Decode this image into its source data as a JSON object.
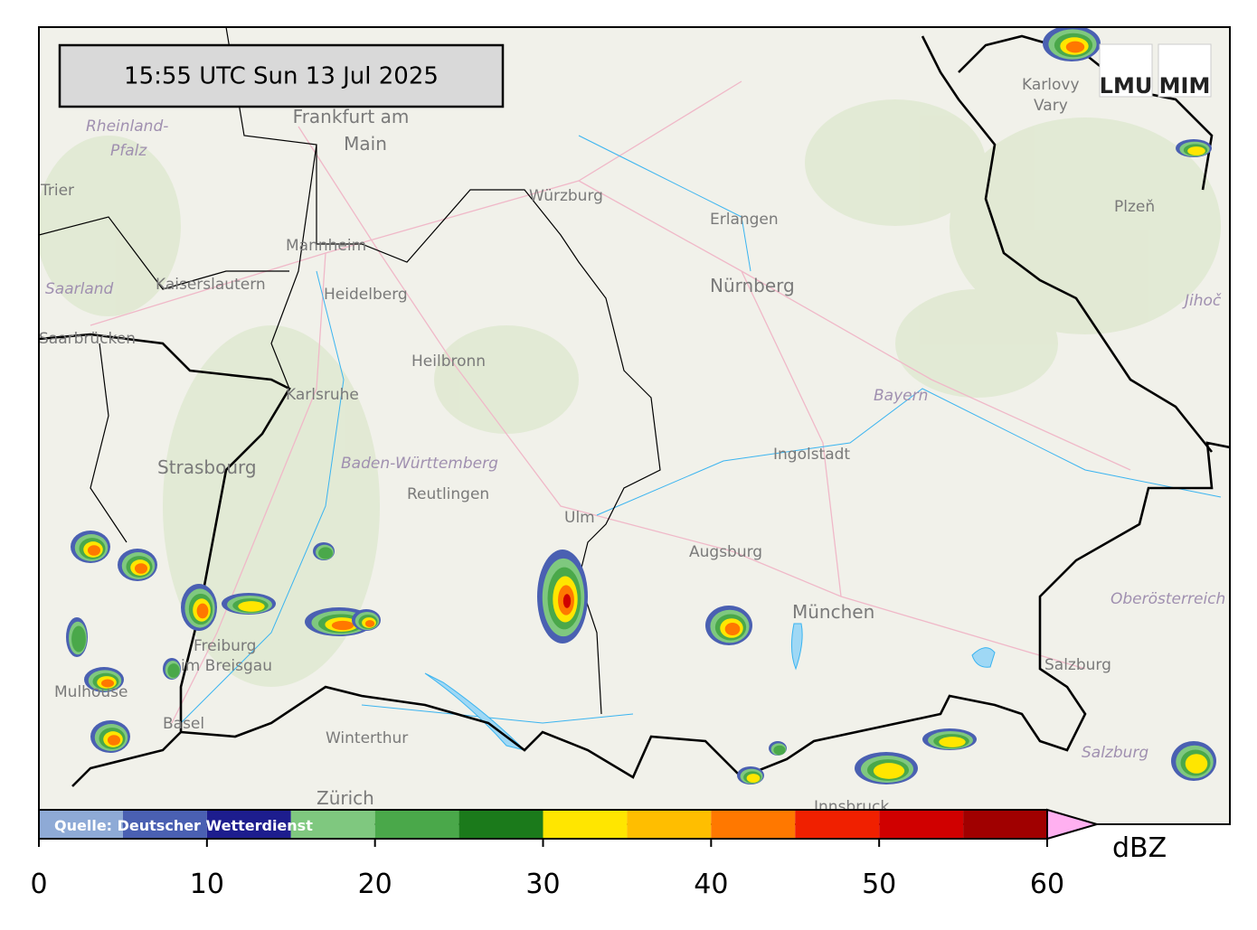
{
  "timestamp": "15:55 UTC  Sun 13 Jul 2025",
  "logos": [
    "LMU",
    "MIM"
  ],
  "source": "Quelle: Deutscher Wetterdienst",
  "map_labels": [
    "Frankfurt am",
    "Main",
    "Rheinland-",
    "Pfalz",
    "Trier",
    "Würzburg",
    "Erlangen",
    "Nürnberg",
    "Mannheim",
    "Kaiserslautern",
    "Heidelberg",
    "Saarland",
    "Saarbrücken",
    "Heilbronn",
    "Karlsruhe",
    "Bayern",
    "Ingolstadt",
    "Baden-Württemberg",
    "Strasbourg",
    "Reutlingen",
    "Ulm",
    "Augsburg",
    "München",
    "Oberösterreich",
    "Freiburg",
    "im Breisgau",
    "Mulhouse",
    "Basel",
    "Winterthur",
    "Zürich",
    "Salzburg",
    "Salzburg",
    "Innsbruck",
    "Karlovy",
    "Vary",
    "Plzeň",
    "Jihoč"
  ],
  "colorbar": {
    "unit": "dBZ",
    "lim": [
      0,
      60
    ],
    "ticks": [
      0,
      10,
      20,
      30,
      40,
      50,
      60
    ],
    "bounds": [
      0,
      5,
      10,
      15,
      20,
      25,
      30,
      35,
      40,
      45,
      50,
      55,
      60
    ],
    "colors": [
      "#8eaad6",
      "#4a60b2",
      "#1d1d8e",
      "#7fc87f",
      "#4aa84a",
      "#1b7a1b",
      "#ffe600",
      "#ffbe00",
      "#ff7800",
      "#f02000",
      "#d00000",
      "#a00000"
    ],
    "extend_color": "#ffb0f0"
  }
}
